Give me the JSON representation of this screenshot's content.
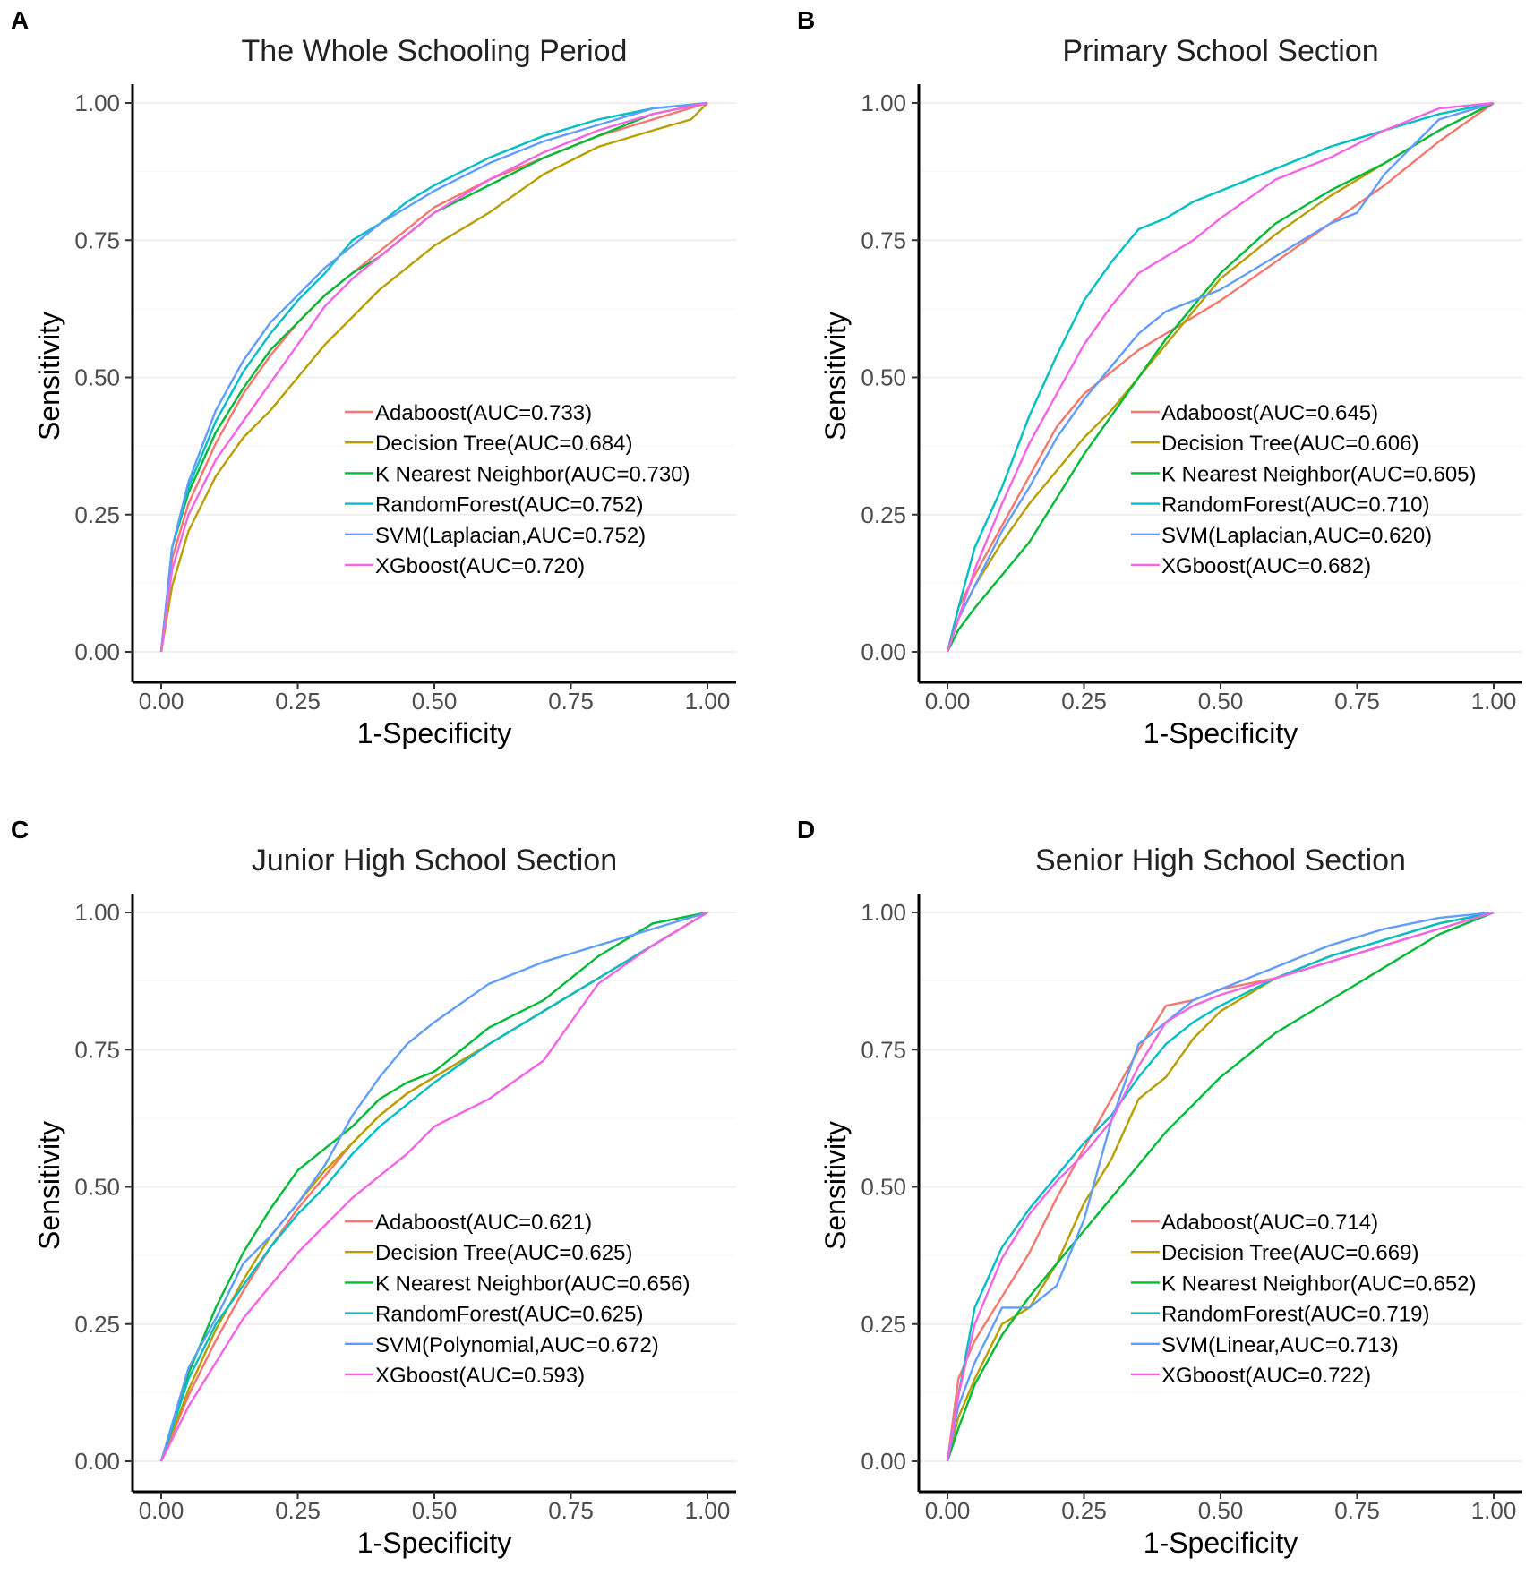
{
  "chart_data": [
    {
      "panel_label": "A",
      "type": "line",
      "title": "The Whole Schooling Period",
      "xlabel": "1-Specificity",
      "ylabel": "Sensitivity",
      "xlim": [
        0,
        1
      ],
      "ylim": [
        0,
        1
      ],
      "ticks": [
        "0.00",
        "0.25",
        "0.50",
        "0.75",
        "1.00"
      ],
      "grid": true,
      "legend": "center-right",
      "series": [
        {
          "name": "Adaboost(AUC=0.733)",
          "color": "#F8766D",
          "x": [
            0,
            0.02,
            0.05,
            0.1,
            0.15,
            0.2,
            0.25,
            0.3,
            0.35,
            0.4,
            0.45,
            0.5,
            0.6,
            0.7,
            0.8,
            0.9,
            1
          ],
          "y": [
            0,
            0.17,
            0.27,
            0.38,
            0.47,
            0.54,
            0.6,
            0.65,
            0.69,
            0.73,
            0.77,
            0.81,
            0.86,
            0.9,
            0.94,
            0.97,
            1
          ]
        },
        {
          "name": "Decision Tree(AUC=0.684)",
          "color": "#B79F00",
          "x": [
            0,
            0.02,
            0.05,
            0.1,
            0.15,
            0.2,
            0.25,
            0.3,
            0.35,
            0.4,
            0.45,
            0.5,
            0.6,
            0.7,
            0.8,
            0.9,
            0.97,
            1
          ],
          "y": [
            0,
            0.12,
            0.22,
            0.32,
            0.39,
            0.44,
            0.5,
            0.56,
            0.61,
            0.66,
            0.7,
            0.74,
            0.8,
            0.87,
            0.92,
            0.95,
            0.97,
            1
          ]
        },
        {
          "name": "K Nearest Neighbor(AUC=0.730)",
          "color": "#00BA38",
          "x": [
            0,
            0.02,
            0.05,
            0.1,
            0.15,
            0.2,
            0.25,
            0.3,
            0.35,
            0.4,
            0.45,
            0.5,
            0.6,
            0.7,
            0.8,
            0.9,
            1
          ],
          "y": [
            0,
            0.19,
            0.29,
            0.4,
            0.48,
            0.55,
            0.6,
            0.65,
            0.69,
            0.72,
            0.76,
            0.8,
            0.85,
            0.9,
            0.94,
            0.98,
            1
          ]
        },
        {
          "name": "RandomForest(AUC=0.752)",
          "color": "#00BFC4",
          "x": [
            0,
            0.02,
            0.05,
            0.1,
            0.15,
            0.2,
            0.25,
            0.3,
            0.35,
            0.4,
            0.45,
            0.5,
            0.6,
            0.7,
            0.8,
            0.9,
            1
          ],
          "y": [
            0,
            0.19,
            0.3,
            0.42,
            0.51,
            0.58,
            0.64,
            0.69,
            0.75,
            0.78,
            0.82,
            0.85,
            0.9,
            0.94,
            0.97,
            0.99,
            1
          ]
        },
        {
          "name": "SVM(Laplacian,AUC=0.752)",
          "color": "#619CFF",
          "x": [
            0,
            0.02,
            0.05,
            0.1,
            0.15,
            0.2,
            0.25,
            0.3,
            0.35,
            0.4,
            0.45,
            0.5,
            0.6,
            0.7,
            0.8,
            0.9,
            1
          ],
          "y": [
            0,
            0.19,
            0.31,
            0.44,
            0.53,
            0.6,
            0.65,
            0.7,
            0.74,
            0.78,
            0.81,
            0.84,
            0.89,
            0.93,
            0.96,
            0.99,
            1
          ]
        },
        {
          "name": "XGboost(AUC=0.720)",
          "color": "#F564E3",
          "x": [
            0,
            0.02,
            0.05,
            0.1,
            0.15,
            0.2,
            0.25,
            0.3,
            0.35,
            0.4,
            0.45,
            0.5,
            0.6,
            0.7,
            0.8,
            0.9,
            1
          ],
          "y": [
            0,
            0.15,
            0.25,
            0.35,
            0.42,
            0.49,
            0.56,
            0.63,
            0.68,
            0.72,
            0.76,
            0.8,
            0.86,
            0.91,
            0.95,
            0.98,
            1
          ]
        }
      ]
    },
    {
      "panel_label": "B",
      "type": "line",
      "title": "Primary School Section",
      "xlabel": "1-Specificity",
      "ylabel": "Sensitivity",
      "xlim": [
        0,
        1
      ],
      "ylim": [
        0,
        1
      ],
      "ticks": [
        "0.00",
        "0.25",
        "0.50",
        "0.75",
        "1.00"
      ],
      "grid": true,
      "legend": "center-right",
      "series": [
        {
          "name": "Adaboost(AUC=0.645)",
          "color": "#F8766D",
          "x": [
            0,
            0.02,
            0.05,
            0.1,
            0.15,
            0.2,
            0.25,
            0.3,
            0.35,
            0.4,
            0.45,
            0.5,
            0.6,
            0.7,
            0.8,
            0.9,
            1
          ],
          "y": [
            0,
            0.08,
            0.14,
            0.23,
            0.32,
            0.41,
            0.47,
            0.51,
            0.55,
            0.58,
            0.61,
            0.64,
            0.71,
            0.78,
            0.85,
            0.93,
            1
          ]
        },
        {
          "name": "Decision Tree(AUC=0.606)",
          "color": "#B79F00",
          "x": [
            0,
            0.02,
            0.05,
            0.1,
            0.15,
            0.2,
            0.25,
            0.3,
            0.35,
            0.4,
            0.45,
            0.5,
            0.6,
            0.7,
            0.8,
            0.9,
            1
          ],
          "y": [
            0,
            0.06,
            0.12,
            0.2,
            0.27,
            0.33,
            0.39,
            0.44,
            0.5,
            0.56,
            0.62,
            0.68,
            0.76,
            0.83,
            0.89,
            0.95,
            1
          ]
        },
        {
          "name": "K Nearest Neighbor(AUC=0.605)",
          "color": "#00BA38",
          "x": [
            0,
            0.02,
            0.05,
            0.1,
            0.15,
            0.2,
            0.25,
            0.3,
            0.35,
            0.4,
            0.45,
            0.5,
            0.6,
            0.7,
            0.8,
            0.9,
            1
          ],
          "y": [
            0,
            0.04,
            0.08,
            0.14,
            0.2,
            0.28,
            0.36,
            0.43,
            0.5,
            0.57,
            0.63,
            0.69,
            0.78,
            0.84,
            0.89,
            0.95,
            1
          ]
        },
        {
          "name": "RandomForest(AUC=0.710)",
          "color": "#00BFC4",
          "x": [
            0,
            0.02,
            0.05,
            0.1,
            0.15,
            0.2,
            0.25,
            0.3,
            0.35,
            0.4,
            0.45,
            0.5,
            0.6,
            0.7,
            0.8,
            0.9,
            1
          ],
          "y": [
            0,
            0.08,
            0.19,
            0.3,
            0.43,
            0.54,
            0.64,
            0.71,
            0.77,
            0.79,
            0.82,
            0.84,
            0.88,
            0.92,
            0.95,
            0.98,
            1
          ]
        },
        {
          "name": "SVM(Laplacian,AUC=0.620)",
          "color": "#619CFF",
          "x": [
            0,
            0.02,
            0.05,
            0.1,
            0.15,
            0.2,
            0.25,
            0.3,
            0.35,
            0.4,
            0.45,
            0.5,
            0.6,
            0.7,
            0.75,
            0.8,
            0.9,
            1
          ],
          "y": [
            0,
            0.06,
            0.12,
            0.22,
            0.3,
            0.39,
            0.46,
            0.52,
            0.58,
            0.62,
            0.64,
            0.66,
            0.72,
            0.78,
            0.8,
            0.87,
            0.97,
            1
          ]
        },
        {
          "name": "XGboost(AUC=0.682)",
          "color": "#F564E3",
          "x": [
            0,
            0.02,
            0.05,
            0.1,
            0.15,
            0.2,
            0.25,
            0.3,
            0.35,
            0.4,
            0.45,
            0.5,
            0.6,
            0.7,
            0.8,
            0.9,
            1
          ],
          "y": [
            0,
            0.06,
            0.15,
            0.27,
            0.38,
            0.47,
            0.56,
            0.63,
            0.69,
            0.72,
            0.75,
            0.79,
            0.86,
            0.9,
            0.95,
            0.99,
            1
          ]
        }
      ]
    },
    {
      "panel_label": "C",
      "type": "line",
      "title": "Junior High School Section",
      "xlabel": "1-Specificity",
      "ylabel": "Sensitivity",
      "xlim": [
        0,
        1
      ],
      "ylim": [
        0,
        1
      ],
      "ticks": [
        "0.00",
        "0.25",
        "0.50",
        "0.75",
        "1.00"
      ],
      "grid": true,
      "legend": "center-right",
      "series": [
        {
          "name": "Adaboost(AUC=0.621)",
          "color": "#F8766D",
          "x": [
            0,
            0.05,
            0.1,
            0.15,
            0.2,
            0.25,
            0.3,
            0.35,
            0.4,
            0.45,
            0.5,
            0.6,
            0.7,
            0.8,
            0.9,
            1
          ],
          "y": [
            0,
            0.12,
            0.22,
            0.31,
            0.39,
            0.46,
            0.52,
            0.58,
            0.63,
            0.67,
            0.7,
            0.76,
            0.82,
            0.88,
            0.94,
            1
          ]
        },
        {
          "name": "Decision Tree(AUC=0.625)",
          "color": "#B79F00",
          "x": [
            0,
            0.05,
            0.1,
            0.15,
            0.2,
            0.25,
            0.3,
            0.35,
            0.4,
            0.45,
            0.5,
            0.6,
            0.7,
            0.8,
            0.9,
            1
          ],
          "y": [
            0,
            0.13,
            0.24,
            0.33,
            0.41,
            0.47,
            0.53,
            0.58,
            0.63,
            0.67,
            0.7,
            0.76,
            0.82,
            0.88,
            0.94,
            1
          ]
        },
        {
          "name": "K Nearest Neighbor(AUC=0.656)",
          "color": "#00BA38",
          "x": [
            0,
            0.05,
            0.1,
            0.15,
            0.2,
            0.25,
            0.3,
            0.35,
            0.4,
            0.45,
            0.5,
            0.6,
            0.7,
            0.8,
            0.9,
            1
          ],
          "y": [
            0,
            0.16,
            0.28,
            0.38,
            0.46,
            0.53,
            0.57,
            0.61,
            0.66,
            0.69,
            0.71,
            0.79,
            0.84,
            0.92,
            0.98,
            1
          ]
        },
        {
          "name": "RandomForest(AUC=0.625)",
          "color": "#00BFC4",
          "x": [
            0,
            0.05,
            0.1,
            0.15,
            0.2,
            0.25,
            0.3,
            0.35,
            0.4,
            0.45,
            0.5,
            0.6,
            0.7,
            0.8,
            0.9,
            1
          ],
          "y": [
            0,
            0.15,
            0.25,
            0.32,
            0.39,
            0.45,
            0.5,
            0.56,
            0.61,
            0.65,
            0.69,
            0.76,
            0.82,
            0.88,
            0.94,
            1
          ]
        },
        {
          "name": "SVM(Polynomial,AUC=0.672)",
          "color": "#619CFF",
          "x": [
            0,
            0.05,
            0.1,
            0.15,
            0.2,
            0.25,
            0.3,
            0.35,
            0.4,
            0.45,
            0.5,
            0.6,
            0.7,
            0.8,
            0.9,
            1
          ],
          "y": [
            0,
            0.17,
            0.26,
            0.36,
            0.41,
            0.47,
            0.54,
            0.63,
            0.7,
            0.76,
            0.8,
            0.87,
            0.91,
            0.94,
            0.97,
            1
          ]
        },
        {
          "name": "XGboost(AUC=0.593)",
          "color": "#F564E3",
          "x": [
            0,
            0.05,
            0.1,
            0.15,
            0.2,
            0.25,
            0.3,
            0.35,
            0.4,
            0.45,
            0.5,
            0.6,
            0.7,
            0.8,
            0.9,
            1
          ],
          "y": [
            0,
            0.1,
            0.18,
            0.26,
            0.32,
            0.38,
            0.43,
            0.48,
            0.52,
            0.56,
            0.61,
            0.66,
            0.73,
            0.87,
            0.94,
            1
          ]
        }
      ]
    },
    {
      "panel_label": "D",
      "type": "line",
      "title": "Senior High School Section",
      "xlabel": "1-Specificity",
      "ylabel": "Sensitivity",
      "xlim": [
        0,
        1
      ],
      "ylim": [
        0,
        1
      ],
      "ticks": [
        "0.00",
        "0.25",
        "0.50",
        "0.75",
        "1.00"
      ],
      "grid": true,
      "legend": "center-right",
      "series": [
        {
          "name": "Adaboost(AUC=0.714)",
          "color": "#F8766D",
          "x": [
            0,
            0.02,
            0.05,
            0.1,
            0.15,
            0.2,
            0.25,
            0.3,
            0.35,
            0.4,
            0.45,
            0.5,
            0.6,
            0.7,
            0.8,
            0.9,
            1
          ],
          "y": [
            0,
            0.15,
            0.22,
            0.3,
            0.38,
            0.48,
            0.57,
            0.66,
            0.75,
            0.83,
            0.84,
            0.86,
            0.88,
            0.91,
            0.94,
            0.97,
            1
          ]
        },
        {
          "name": "Decision Tree(AUC=0.669)",
          "color": "#B79F00",
          "x": [
            0,
            0.02,
            0.05,
            0.1,
            0.15,
            0.2,
            0.25,
            0.3,
            0.35,
            0.4,
            0.45,
            0.5,
            0.6,
            0.7,
            0.8,
            0.9,
            1
          ],
          "y": [
            0,
            0.08,
            0.15,
            0.25,
            0.28,
            0.36,
            0.47,
            0.55,
            0.66,
            0.7,
            0.77,
            0.82,
            0.88,
            0.92,
            0.95,
            0.98,
            1
          ]
        },
        {
          "name": "K Nearest Neighbor(AUC=0.652)",
          "color": "#00BA38",
          "x": [
            0,
            0.02,
            0.05,
            0.1,
            0.15,
            0.2,
            0.25,
            0.3,
            0.35,
            0.4,
            0.45,
            0.5,
            0.6,
            0.7,
            0.8,
            0.9,
            1
          ],
          "y": [
            0,
            0.06,
            0.14,
            0.23,
            0.3,
            0.36,
            0.42,
            0.48,
            0.54,
            0.6,
            0.65,
            0.7,
            0.78,
            0.84,
            0.9,
            0.96,
            1
          ]
        },
        {
          "name": "RandomForest(AUC=0.719)",
          "color": "#00BFC4",
          "x": [
            0,
            0.02,
            0.05,
            0.1,
            0.15,
            0.2,
            0.25,
            0.3,
            0.35,
            0.4,
            0.45,
            0.5,
            0.6,
            0.7,
            0.8,
            0.9,
            1
          ],
          "y": [
            0,
            0.12,
            0.28,
            0.39,
            0.46,
            0.52,
            0.58,
            0.63,
            0.7,
            0.76,
            0.8,
            0.83,
            0.88,
            0.92,
            0.95,
            0.98,
            1
          ]
        },
        {
          "name": "SVM(Linear,AUC=0.713)",
          "color": "#619CFF",
          "x": [
            0,
            0.02,
            0.05,
            0.1,
            0.15,
            0.2,
            0.25,
            0.3,
            0.35,
            0.4,
            0.45,
            0.5,
            0.6,
            0.7,
            0.8,
            0.9,
            1
          ],
          "y": [
            0,
            0.1,
            0.18,
            0.28,
            0.28,
            0.32,
            0.44,
            0.62,
            0.76,
            0.8,
            0.84,
            0.86,
            0.9,
            0.94,
            0.97,
            0.99,
            1
          ]
        },
        {
          "name": "XGboost(AUC=0.722)",
          "color": "#F564E3",
          "x": [
            0,
            0.02,
            0.05,
            0.1,
            0.15,
            0.2,
            0.25,
            0.3,
            0.35,
            0.4,
            0.45,
            0.5,
            0.6,
            0.7,
            0.8,
            0.9,
            1
          ],
          "y": [
            0,
            0.12,
            0.25,
            0.37,
            0.45,
            0.51,
            0.56,
            0.62,
            0.72,
            0.8,
            0.83,
            0.85,
            0.88,
            0.91,
            0.94,
            0.97,
            1
          ]
        }
      ]
    }
  ]
}
